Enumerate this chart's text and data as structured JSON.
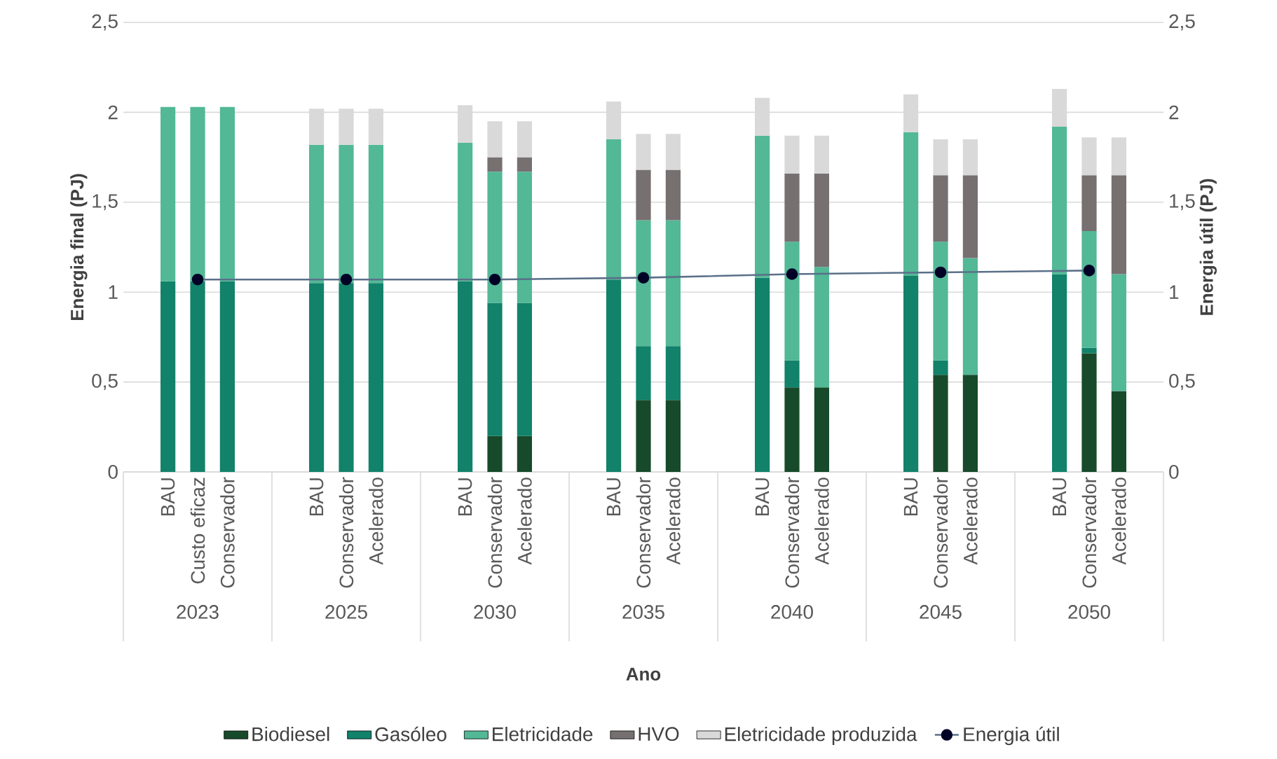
{
  "chart_data": {
    "type": "bar",
    "stacked": true,
    "categories": [
      null,
      "BAU",
      "Custo eficaz",
      "Conservador",
      null,
      null,
      "BAU",
      "Conservador",
      "Acelerado",
      null,
      null,
      "BAU",
      "Conservador",
      "Acelerado",
      null,
      null,
      "BAU",
      "Conservador",
      "Acelerado",
      null,
      null,
      "BAU",
      "Conservador",
      "Acelerado",
      null,
      null,
      "BAU",
      "Conservador",
      "Acelerado",
      null,
      null,
      "BAU",
      "Conservador",
      "Acelerado",
      null
    ],
    "xlabel": "Ano",
    "ylabel": "Energia final (PJ)",
    "y2label": "Energia útil (PJ)",
    "annotations": [
      "2023",
      "2025",
      "2030",
      "2035",
      "2040",
      "2045",
      "2050"
    ],
    "ylim": [
      0,
      2.5
    ],
    "yticks": [
      0,
      {
        "value": 0.5,
        "label": "0,5"
      },
      1,
      {
        "value": 1.5,
        "label": "1,5"
      },
      2,
      {
        "value": 2.5,
        "label": "2,5"
      }
    ],
    "y2lim": [
      0,
      2.5
    ],
    "y2ticks": [
      0,
      {
        "value": 0.5,
        "label": "0,5"
      },
      1,
      {
        "value": 1.5,
        "label": "1,5"
      },
      2,
      {
        "value": 2.5,
        "label": "2,5"
      }
    ],
    "grid": "y",
    "legend": "bottom",
    "marker": "circle",
    "series": [
      {
        "name": "Biodiesel",
        "color": "#174a2a",
        "values": [
          null,
          null,
          null,
          null,
          null,
          null,
          null,
          null,
          null,
          null,
          null,
          null,
          0.2,
          0.2,
          null,
          null,
          null,
          0.4,
          0.4,
          null,
          null,
          null,
          0.47,
          0.47,
          null,
          null,
          null,
          0.54,
          0.54,
          null,
          null,
          null,
          0.66,
          0.45,
          null
        ]
      },
      {
        "name": "Gasóleo",
        "color": "#12826a",
        "values": [
          null,
          1.06,
          1.06,
          1.06,
          null,
          null,
          1.05,
          1.05,
          1.05,
          null,
          null,
          1.06,
          0.74,
          0.74,
          null,
          null,
          1.07,
          0.3,
          0.3,
          null,
          null,
          1.08,
          0.15,
          null,
          null,
          null,
          1.09,
          0.08,
          null,
          null,
          null,
          1.1,
          0.03,
          null,
          null
        ]
      },
      {
        "name": "Eletricidade",
        "color": "#52b896",
        "values": [
          null,
          0.97,
          0.97,
          0.97,
          null,
          null,
          0.77,
          0.77,
          0.77,
          null,
          null,
          0.77,
          0.73,
          0.73,
          null,
          null,
          0.78,
          0.7,
          0.7,
          null,
          null,
          0.79,
          0.66,
          0.67,
          null,
          null,
          0.8,
          0.66,
          0.65,
          null,
          null,
          0.82,
          0.65,
          0.65,
          null
        ]
      },
      {
        "name": "HVO",
        "color": "#767070",
        "values": [
          null,
          null,
          null,
          null,
          null,
          null,
          null,
          null,
          null,
          null,
          null,
          null,
          0.08,
          0.08,
          null,
          null,
          null,
          0.28,
          0.28,
          null,
          null,
          null,
          0.38,
          0.52,
          null,
          null,
          null,
          0.37,
          0.46,
          null,
          null,
          null,
          0.31,
          0.55,
          null
        ]
      },
      {
        "name": "Eletricidade produzida",
        "color": "#d9d9d9",
        "values": [
          null,
          null,
          null,
          null,
          null,
          null,
          0.2,
          0.2,
          0.2,
          null,
          null,
          0.21,
          0.2,
          0.2,
          null,
          null,
          0.21,
          0.2,
          0.2,
          null,
          null,
          0.21,
          0.21,
          0.21,
          null,
          null,
          0.21,
          0.2,
          0.2,
          null,
          null,
          0.21,
          0.21,
          0.21,
          null
        ]
      },
      {
        "name": "Energia útil",
        "type": "line",
        "axis": "y2",
        "color": "#5a7088",
        "values": [
          null,
          null,
          1.07,
          null,
          null,
          null,
          null,
          1.07,
          null,
          null,
          null,
          null,
          1.07,
          null,
          null,
          null,
          null,
          1.08,
          null,
          null,
          null,
          null,
          1.1,
          null,
          null,
          null,
          null,
          1.11,
          null,
          null,
          null,
          null,
          1.12,
          null,
          null
        ]
      }
    ]
  }
}
